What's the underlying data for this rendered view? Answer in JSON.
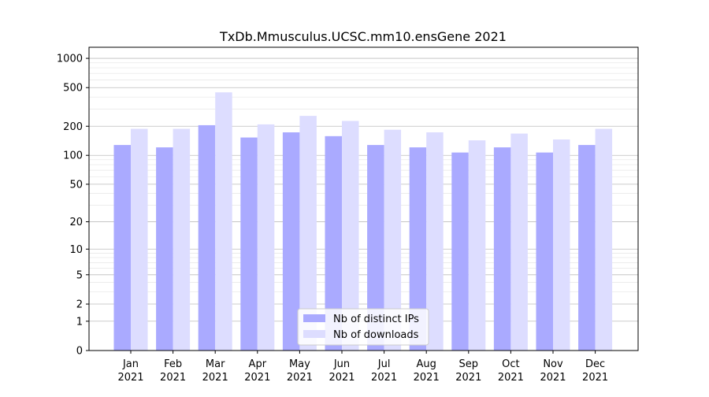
{
  "chart_data": {
    "type": "bar",
    "title": "TxDb.Mmusculus.UCSC.mm10.ensGene 2021",
    "xlabel": "",
    "ylabel": "",
    "yscale": "log(1+y)",
    "ylim": [
      0,
      1300
    ],
    "yticks": [
      0,
      1,
      2,
      5,
      10,
      20,
      50,
      100,
      200,
      500,
      1000
    ],
    "grid": true,
    "legend_position": "lower-center",
    "categories": [
      {
        "month": "Jan",
        "year": "2021"
      },
      {
        "month": "Feb",
        "year": "2021"
      },
      {
        "month": "Mar",
        "year": "2021"
      },
      {
        "month": "Apr",
        "year": "2021"
      },
      {
        "month": "May",
        "year": "2021"
      },
      {
        "month": "Jun",
        "year": "2021"
      },
      {
        "month": "Jul",
        "year": "2021"
      },
      {
        "month": "Aug",
        "year": "2021"
      },
      {
        "month": "Sep",
        "year": "2021"
      },
      {
        "month": "Oct",
        "year": "2021"
      },
      {
        "month": "Nov",
        "year": "2021"
      },
      {
        "month": "Dec",
        "year": "2021"
      }
    ],
    "series": [
      {
        "name": "Nb of distinct IPs",
        "color": "#aaaaff",
        "values": [
          128,
          121,
          205,
          153,
          173,
          158,
          128,
          121,
          107,
          121,
          107,
          128
        ]
      },
      {
        "name": "Nb of downloads",
        "color": "#ddddff",
        "values": [
          188,
          188,
          447,
          209,
          256,
          227,
          184,
          173,
          143,
          168,
          146,
          188
        ]
      }
    ]
  }
}
